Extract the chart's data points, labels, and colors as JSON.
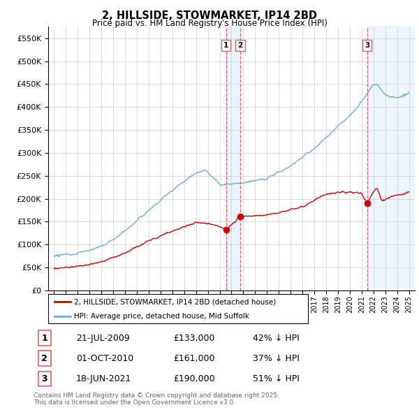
{
  "title": "2, HILLSIDE, STOWMARKET, IP14 2BD",
  "subtitle": "Price paid vs. HM Land Registry's House Price Index (HPI)",
  "legend_line1": "2, HILLSIDE, STOWMARKET, IP14 2BD (detached house)",
  "legend_line2": "HPI: Average price, detached house, Mid Suffolk",
  "footer": "Contains HM Land Registry data © Crown copyright and database right 2025.\nThis data is licensed under the Open Government Licence v3.0.",
  "transactions": [
    {
      "num": "1",
      "date": "21-JUL-2009",
      "price": "£133,000",
      "pct": "42% ↓ HPI",
      "year": 2009.54,
      "price_val": 133000
    },
    {
      "num": "2",
      "date": "01-OCT-2010",
      "price": "£161,000",
      "pct": "37% ↓ HPI",
      "year": 2010.75,
      "price_val": 161000
    },
    {
      "num": "3",
      "date": "18-JUN-2021",
      "price": "£190,000",
      "pct": "51% ↓ HPI",
      "year": 2021.46,
      "price_val": 190000
    }
  ],
  "hpi_color": "#6baed6",
  "price_color": "#cc0000",
  "vline_color": "#e06060",
  "shade_color": "#ddeeff",
  "ylim": [
    0,
    575000
  ],
  "yticks": [
    0,
    50000,
    100000,
    150000,
    200000,
    250000,
    300000,
    350000,
    400000,
    450000,
    500000,
    550000
  ],
  "ytick_labels": [
    "£0",
    "£50K",
    "£100K",
    "£150K",
    "£200K",
    "£250K",
    "£300K",
    "£350K",
    "£400K",
    "£450K",
    "£500K",
    "£550K"
  ],
  "xlim": [
    1994.5,
    2025.5
  ],
  "xticks": [
    1995,
    1996,
    1997,
    1998,
    1999,
    2000,
    2001,
    2002,
    2003,
    2004,
    2005,
    2006,
    2007,
    2008,
    2009,
    2010,
    2011,
    2012,
    2013,
    2014,
    2015,
    2016,
    2017,
    2018,
    2019,
    2020,
    2021,
    2022,
    2023,
    2024,
    2025
  ],
  "hpi_y1995": 75000,
  "hpi_y2000": 115000,
  "hpi_y2004": 215000,
  "hpi_y2007": 260000,
  "hpi_y2009": 230000,
  "hpi_y2012": 240000,
  "hpi_y2015": 280000,
  "hpi_y2019": 360000,
  "hpi_y2022": 450000,
  "hpi_y2025": 430000,
  "price_y1995": 48000,
  "price_y2000": 68000,
  "price_y2004": 110000,
  "price_y2007": 148000,
  "price_y2009_pre": 140000,
  "price_y2010_post": 163000,
  "price_y2014": 175000,
  "price_y2018": 220000,
  "price_y2021_pre": 215000,
  "price_y2022_peak": 220000,
  "price_y2022_dip": 195000,
  "price_y2025": 215000
}
